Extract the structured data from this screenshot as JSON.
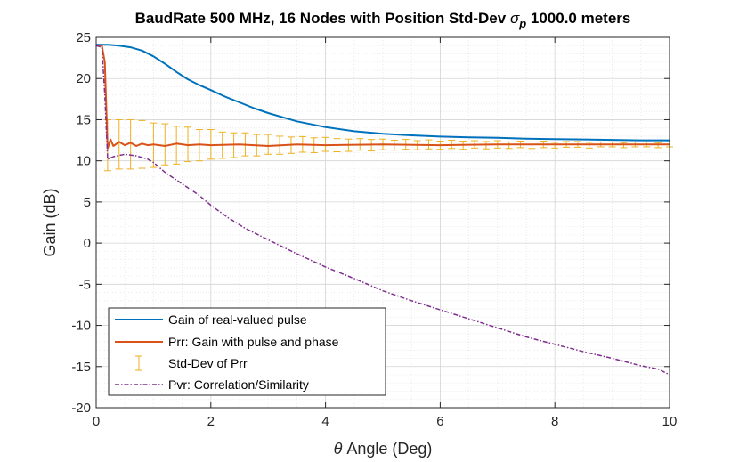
{
  "chart_data": {
    "type": "line",
    "title": {
      "prefix": "BaudRate 500 MHz, 16 Nodes with Position Std-Dev ",
      "symbol": "σ",
      "subscript": "p",
      "suffix": " 1000.0 meters"
    },
    "xlabel": {
      "symbol": "θ",
      "text": " Angle (Deg)"
    },
    "ylabel": "Gain (dB)",
    "xlim": [
      0,
      10
    ],
    "ylim": [
      -20,
      25
    ],
    "xticks": [
      0,
      2,
      4,
      6,
      8,
      10
    ],
    "yticks": [
      -20,
      -15,
      -10,
      -5,
      0,
      5,
      10,
      15,
      20,
      25
    ],
    "grid": true,
    "minor_grid": true,
    "legend_position": "bottom-left",
    "series": [
      {
        "name": "Gain of real-valued pulse",
        "color": "#0072BD",
        "style": "solid",
        "x": [
          0,
          0.2,
          0.4,
          0.6,
          0.8,
          1.0,
          1.2,
          1.4,
          1.6,
          1.8,
          2.0,
          2.25,
          2.5,
          2.75,
          3.0,
          3.5,
          4.0,
          4.5,
          5.0,
          5.5,
          6.0,
          6.5,
          7.0,
          7.5,
          8.0,
          8.5,
          9.0,
          9.5,
          10.0
        ],
        "y": [
          24.1,
          24.1,
          24.0,
          23.8,
          23.4,
          22.7,
          21.8,
          20.8,
          19.9,
          19.2,
          18.6,
          17.8,
          17.1,
          16.4,
          15.8,
          14.8,
          14.1,
          13.6,
          13.3,
          13.1,
          12.95,
          12.85,
          12.8,
          12.7,
          12.65,
          12.6,
          12.55,
          12.5,
          12.5
        ]
      },
      {
        "name": "Prr: Gain with pulse and phase",
        "color": "#D95319",
        "style": "solid",
        "x": [
          0,
          0.1,
          0.15,
          0.2,
          0.25,
          0.3,
          0.4,
          0.5,
          0.6,
          0.7,
          0.8,
          0.9,
          1.0,
          1.2,
          1.4,
          1.6,
          1.8,
          2.0,
          2.5,
          3.0,
          3.5,
          4.0,
          5.0,
          6.0,
          7.0,
          8.0,
          9.0,
          10.0
        ],
        "y": [
          24.0,
          24.0,
          22.0,
          11.5,
          12.6,
          11.8,
          12.3,
          11.9,
          12.2,
          11.8,
          12.1,
          11.9,
          12.0,
          11.8,
          12.1,
          11.9,
          12.0,
          11.9,
          12.0,
          11.8,
          12.0,
          11.9,
          12.0,
          11.9,
          12.0,
          12.0,
          12.0,
          12.0
        ]
      },
      {
        "name": "Pvr: Correlation/Similarity",
        "color": "#7E2F8E",
        "style": "dashdot",
        "x": [
          0,
          0.1,
          0.15,
          0.2,
          0.3,
          0.5,
          0.7,
          0.9,
          1.0,
          1.2,
          1.5,
          1.8,
          2.0,
          2.3,
          2.6,
          3.0,
          3.5,
          4.0,
          4.5,
          5.0,
          5.5,
          6.0,
          6.5,
          7.0,
          7.5,
          8.0,
          8.5,
          9.0,
          9.5,
          9.8,
          10.0
        ],
        "y": [
          24.0,
          23.8,
          18.0,
          10.2,
          10.5,
          10.8,
          10.6,
          10.2,
          9.8,
          8.6,
          7.2,
          5.8,
          4.6,
          3.1,
          1.8,
          0.4,
          -1.3,
          -2.9,
          -4.3,
          -5.8,
          -7.0,
          -8.1,
          -9.2,
          -10.3,
          -11.4,
          -12.3,
          -13.2,
          -14.0,
          -14.9,
          -15.3,
          -16.0
        ]
      }
    ],
    "errorbars": {
      "name": "Std-Dev of Prr",
      "color": "#EDB120",
      "x": [
        0.2,
        0.4,
        0.6,
        0.8,
        1.0,
        1.2,
        1.4,
        1.6,
        1.8,
        2.0,
        2.2,
        2.4,
        2.6,
        2.8,
        3.0,
        3.2,
        3.4,
        3.6,
        3.8,
        4.0,
        4.2,
        4.4,
        4.6,
        4.8,
        5.0,
        5.2,
        5.4,
        5.6,
        5.8,
        6.0,
        6.2,
        6.4,
        6.6,
        6.8,
        7.0,
        7.2,
        7.4,
        7.6,
        7.8,
        8.0,
        8.2,
        8.4,
        8.6,
        8.8,
        9.0,
        9.2,
        9.4,
        9.6,
        9.8,
        10.0
      ],
      "y": [
        11.9,
        12.0,
        12.0,
        12.0,
        11.9,
        12.0,
        11.9,
        12.0,
        11.9,
        12.0,
        11.9,
        11.9,
        12.0,
        11.9,
        12.0,
        11.9,
        11.9,
        12.0,
        11.9,
        12.0,
        11.9,
        11.9,
        12.0,
        11.9,
        12.0,
        11.9,
        12.0,
        11.9,
        12.0,
        11.9,
        12.0,
        11.9,
        12.0,
        11.9,
        12.0,
        11.9,
        12.0,
        11.9,
        12.0,
        11.9,
        12.0,
        12.0,
        11.9,
        12.0,
        12.0,
        11.9,
        12.0,
        12.0,
        11.9,
        12.0
      ],
      "err": [
        3.1,
        3.0,
        3.0,
        2.9,
        2.7,
        2.5,
        2.3,
        2.1,
        1.9,
        1.8,
        1.6,
        1.5,
        1.4,
        1.3,
        1.2,
        1.1,
        1.0,
        0.95,
        0.9,
        0.85,
        0.8,
        0.75,
        0.7,
        0.7,
        0.65,
        0.6,
        0.6,
        0.55,
        0.55,
        0.5,
        0.5,
        0.5,
        0.45,
        0.45,
        0.45,
        0.4,
        0.4,
        0.4,
        0.4,
        0.35,
        0.35,
        0.35,
        0.35,
        0.3,
        0.3,
        0.3,
        0.3,
        0.3,
        0.3,
        0.3
      ]
    },
    "legend": [
      {
        "label": "Gain of real-valued pulse",
        "kind": "line",
        "color": "#0072BD"
      },
      {
        "label": "Prr: Gain with pulse and phase",
        "kind": "line",
        "color": "#D95319"
      },
      {
        "label": "Std-Dev of Prr",
        "kind": "errorbar",
        "color": "#EDB120"
      },
      {
        "label": "Pvr: Correlation/Similarity",
        "kind": "dashdot",
        "color": "#7E2F8E"
      }
    ]
  }
}
